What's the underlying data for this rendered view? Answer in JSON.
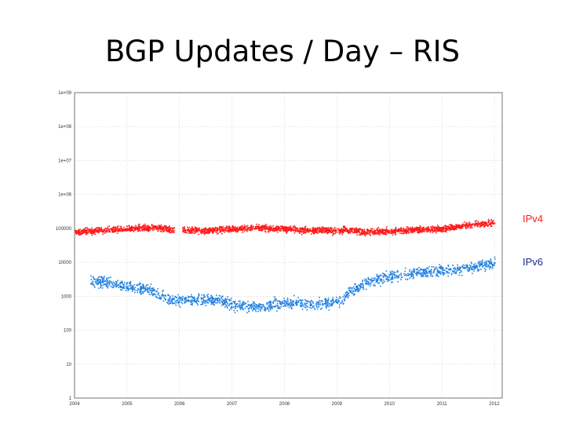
{
  "slide": {
    "title": "BGP Updates / Day – RIS"
  },
  "chart_data": {
    "type": "scatter",
    "title": "BGP Updates / Day – RIS",
    "xlabel": "",
    "ylabel": "",
    "x_ticks": [
      "2004",
      "2005",
      "2006",
      "2007",
      "2008",
      "2009",
      "2010",
      "2011",
      "2012"
    ],
    "xlim": [
      2004,
      2012.15
    ],
    "y_scale": "log",
    "y_ticks": [
      {
        "value": 1,
        "label": "1"
      },
      {
        "value": 10,
        "label": "10"
      },
      {
        "value": 100,
        "label": "100"
      },
      {
        "value": 1000,
        "label": "1000"
      },
      {
        "value": 10000,
        "label": "10000"
      },
      {
        "value": 100000,
        "label": "100000"
      },
      {
        "value": 1000000,
        "label": "1e+06"
      },
      {
        "value": 10000000,
        "label": "1e+07"
      },
      {
        "value": 100000000,
        "label": "1e+08"
      },
      {
        "value": 1000000000,
        "label": "1e+09"
      }
    ],
    "ylim": [
      1,
      1000000000
    ],
    "grid": true,
    "legend": "right",
    "series": [
      {
        "name": "IPv4",
        "color": "#ff1a1a",
        "trend": [
          [
            2004.0,
            80000
          ],
          [
            2004.5,
            90000
          ],
          [
            2005.0,
            100000
          ],
          [
            2005.5,
            110000
          ],
          [
            2006.0,
            90000
          ],
          [
            2006.5,
            90000
          ],
          [
            2007.0,
            100000
          ],
          [
            2007.5,
            110000
          ],
          [
            2008.0,
            100000
          ],
          [
            2008.5,
            90000
          ],
          [
            2009.0,
            90000
          ],
          [
            2009.3,
            95000
          ],
          [
            2009.5,
            80000
          ],
          [
            2010.0,
            85000
          ],
          [
            2010.5,
            95000
          ],
          [
            2011.0,
            100000
          ],
          [
            2011.5,
            130000
          ],
          [
            2012.0,
            150000
          ]
        ],
        "gaps": [
          [
            2005.9,
            2006.05
          ]
        ]
      },
      {
        "name": "IPv6",
        "color": "#2080e0",
        "trend": [
          [
            2004.3,
            3000
          ],
          [
            2004.7,
            2500
          ],
          [
            2005.0,
            2000
          ],
          [
            2005.5,
            1500
          ],
          [
            2005.8,
            800
          ],
          [
            2006.8,
            800
          ],
          [
            2007.0,
            600
          ],
          [
            2007.5,
            500
          ],
          [
            2008.0,
            700
          ],
          [
            2008.5,
            600
          ],
          [
            2009.0,
            700
          ],
          [
            2009.5,
            2500
          ],
          [
            2010.0,
            4000
          ],
          [
            2010.5,
            5000
          ],
          [
            2011.0,
            6000
          ],
          [
            2011.5,
            7000
          ],
          [
            2012.0,
            10000
          ]
        ]
      }
    ]
  }
}
